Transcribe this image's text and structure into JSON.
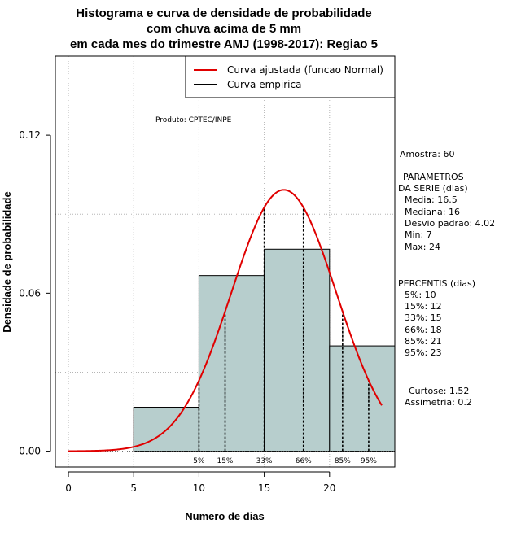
{
  "chart_data": {
    "type": "histogram",
    "title_lines": [
      "Histograma e curva de densidade de probabilidade",
      "com chuva acima de 5 mm",
      "em cada mes do trimestre AMJ (1998-2017): Regiao 5"
    ],
    "xlabel": "Numero de dias",
    "ylabel": "Densidade de probabilidade",
    "xlim": [
      -1,
      25
    ],
    "ylim": [
      -0.006,
      0.15
    ],
    "x_ticks": [
      0,
      5,
      10,
      15,
      20
    ],
    "x_tick_labels": [
      "0",
      "5",
      "10",
      "15",
      "20"
    ],
    "y_ticks": [
      0.0,
      0.06,
      0.12
    ],
    "y_tick_labels": [
      "0.00",
      "0.06",
      "0.12"
    ],
    "grid": true,
    "bins": [
      {
        "start": 5,
        "end": 10,
        "density": 0.0167
      },
      {
        "start": 10,
        "end": 15,
        "density": 0.0667
      },
      {
        "start": 15,
        "end": 20,
        "density": 0.0767
      },
      {
        "start": 20,
        "end": 25,
        "density": 0.04
      }
    ],
    "bar_color": "#b7cecd",
    "normal_fit": {
      "mean": 16.5,
      "sd": 4.02,
      "x_range": [
        0,
        24
      ],
      "color": "#e00000"
    },
    "percentile_lines": [
      {
        "label": "5%",
        "x": 10
      },
      {
        "label": "15%",
        "x": 12
      },
      {
        "label": "33%",
        "x": 15
      },
      {
        "label": "66%",
        "x": 18
      },
      {
        "label": "85%",
        "x": 21
      },
      {
        "label": "95%",
        "x": 23
      }
    ],
    "legend": {
      "position": "top-right",
      "entries": [
        {
          "label": "Curva ajustada (funcao Normal)",
          "color": "#e00000"
        },
        {
          "label": "Curva empirica",
          "color": "#000000"
        }
      ]
    },
    "credit": "Produto: CPTEC/INPE"
  },
  "side_panel": {
    "amostra": "Amostra: 60",
    "params_title_1": "PARAMETROS",
    "params_title_2": "DA SERIE (dias)",
    "media": "Media: 16.5",
    "mediana": "Mediana: 16",
    "desvio": "Desvio padrao: 4.02",
    "min": "Min: 7",
    "max": "Max: 24",
    "percentis_title": "PERCENTIS (dias)",
    "p5": "5%: 10",
    "p15": "15%: 12",
    "p33": "33%: 15",
    "p66": "66%: 18",
    "p85": "85%: 21",
    "p95": "95%: 23",
    "curtose": "Curtose: 1.52",
    "assimetria": "Assimetria: 0.2"
  }
}
